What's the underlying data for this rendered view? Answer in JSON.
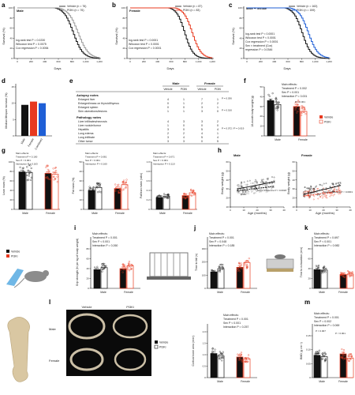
{
  "colors": {
    "vehicle": "#111111",
    "pi3k": "#e8391f",
    "male_female": "#1f5fd6",
    "combined_bar": "#1f5fd6",
    "grey": "#9a9a9a",
    "bone": "#d9c7a2"
  },
  "panels": [
    "a",
    "b",
    "c",
    "d",
    "e",
    "f",
    "g",
    "h",
    "i",
    "j",
    "k",
    "l",
    "m"
  ],
  "survival": {
    "ylabel": "Survival (%)",
    "xlabel": "Days",
    "yticks": [
      "0",
      "20",
      "40",
      "60",
      "80",
      "100"
    ],
    "xticks": [
      "0",
      "200",
      "400",
      "600",
      "800",
      "1,000",
      "1,200"
    ],
    "a": {
      "group": "Male",
      "legend": [
        "Vehicle (n = 76)",
        "PI3Ki (n = 76)"
      ],
      "stats": [
        "log-rank test P = 0.0230",
        "Wilcoxon test P = 0.0075",
        "Cox regression P = 0.0054"
      ]
    },
    "b": {
      "group": "Female",
      "legend": [
        "Vehicle (n = 87)",
        "PI3Ki (n = 83)"
      ],
      "stats": [
        "log-rank test P = 0.0001",
        "Wilcoxon test P = 0.0001",
        "Cox regression P = 0.0001"
      ]
    },
    "c": {
      "group": "Male + female",
      "legend": [
        "Vehicle (n = 163)",
        "PI3Ki (n = 159)"
      ],
      "stats": [
        "log-rank test P < 0.0001",
        "Wilcoxon test P < 0.0001",
        "Cox regression P < 0.0001",
        "Sex × treatment (Cox)",
        "regression P = 0.0346"
      ]
    }
  },
  "panel_d": {
    "ylabel": "Median lifespan increase (%)",
    "yticks": [
      "0",
      "5",
      "10",
      "15"
    ],
    "categories": [
      "Male",
      "Female",
      "Combined"
    ]
  },
  "panel_e": {
    "col_groups": [
      "Male",
      "Female"
    ],
    "col_heads": [
      "Vehicle",
      "PI3Ki",
      "Vehicle",
      "PI3Ki"
    ],
    "autopsy_title": "Autopsy notes",
    "autopsy_rows": [
      {
        "label": "Enlarged liver",
        "vals": [
          "4",
          "1",
          "7",
          "1"
        ],
        "p": "P = 0.036"
      },
      {
        "label": "Enlarged/mass on thyroid/thymus",
        "vals": [
          "0",
          "1",
          "2",
          "2"
        ],
        "p": ""
      },
      {
        "label": "Enlarged spleen",
        "vals": [
          "0",
          "0",
          "3",
          "1"
        ],
        "p": ""
      },
      {
        "label": "Skin ulcerations/lesions",
        "vals": [
          "1",
          "1",
          "3",
          "0"
        ],
        "p": "P = 0.016"
      }
    ],
    "pathology_title": "Pathology notes",
    "pathology_rows": [
      {
        "label": "Liver infiltrates/necrosis",
        "vals": [
          "4",
          "3",
          "3",
          "2"
        ],
        "p": ""
      },
      {
        "label": "Liver nodule/tumor",
        "vals": [
          "1",
          "0",
          "0",
          "0"
        ],
        "p": ""
      },
      {
        "label": "Hepatitis",
        "vals": [
          "3",
          "0",
          "5",
          "4"
        ],
        "p": "P = 0.072 / P = 0.019"
      },
      {
        "label": "Lung edema",
        "vals": [
          "2",
          "2",
          "4",
          "1"
        ],
        "p": ""
      },
      {
        "label": "Lung infiltrate",
        "vals": [
          "3",
          "4",
          "5",
          "4"
        ],
        "p": ""
      },
      {
        "label": "Other tumor",
        "vals": [
          "3",
          "3",
          "0",
          "5"
        ],
        "p": ""
      }
    ]
  },
  "panel_f": {
    "ylabel": "18-month body weight (g)",
    "yticks": [
      "0",
      "10",
      "20",
      "30",
      "40",
      "50"
    ],
    "groups": [
      "Male",
      "Female"
    ],
    "stats": [
      "Main effects:",
      "Treatment P = 0.002",
      "Sex P < 0.001",
      "Interaction P < 0.001"
    ],
    "pvals": [
      "P = 0.001"
    ],
    "legend": [
      "Vehicle",
      "PI3Ki"
    ]
  },
  "panel_g": {
    "groups": [
      "Male",
      "Female"
    ],
    "plots": [
      {
        "ylabel": "Lean mass (%)",
        "yticks": [
          "0",
          "20",
          "40",
          "60",
          "80",
          "100"
        ],
        "stats": [
          "Main effects:",
          "Treatment P = 0.100",
          "Sex P < 0.001",
          "Interaction P = 0.163"
        ]
      },
      {
        "ylabel": "Fat mass (%)",
        "yticks": [
          "0",
          "10",
          "20",
          "30",
          "40",
          "50"
        ],
        "stats": [
          "Main effects:",
          "Treatment P = 0.081",
          "Sex P < 0.001",
          "Interaction P = 0.160"
        ]
      },
      {
        "ylabel": "Fat/lean mass (ratio)",
        "yticks": [
          "0",
          "0.2",
          "0.4",
          "0.6",
          "0.8",
          "1.0"
        ],
        "stats": [
          "Main effects:",
          "Treatment P = 0.071",
          "Sex P < 0.001",
          "Interaction P = 0.110"
        ]
      }
    ]
  },
  "panel_h": {
    "ylabel": "Body weight (g)",
    "xlabel": "Age (months)",
    "xticks": [
      "0",
      "10",
      "20",
      "30",
      "40"
    ],
    "yticks": [
      "10",
      "20",
      "30",
      "40",
      "50",
      "60"
    ],
    "male": {
      "title": "Male",
      "legend": [
        "Vehicle",
        "PI3Ki"
      ],
      "stat": "Slope difference P = 0.0018"
    },
    "female": {
      "title": "Female",
      "legend": [
        "Vehicle",
        "PI3Ki"
      ],
      "stat": "Slope difference P < 0.0001"
    }
  },
  "panel_i": {
    "legend": [
      "Vehicle",
      "PI3Ki"
    ],
    "ylabel": "Grip strength (N per kg of body weight)",
    "yticks": [
      "0",
      "20",
      "40",
      "60",
      "80"
    ],
    "stats": [
      "Main effects:",
      "Treatment P = 0.001",
      "Sex P < 0.001",
      "Interaction P = 0.260"
    ],
    "groups": [
      "Male",
      "Female"
    ]
  },
  "panel_j": {
    "ylabel": "Time to fall (s)",
    "yticks": [
      "0",
      "100",
      "200",
      "300"
    ],
    "stats": [
      "Main effects:",
      "Treatment P = 0.001",
      "Sex P = 0.048",
      "Interaction P = 0.185"
    ],
    "groups": [
      "Male",
      "Female"
    ]
  },
  "panel_k": {
    "ylabel": "Time to exhaustion (min)",
    "yticks": [
      "0",
      "20",
      "40",
      "60",
      "80"
    ],
    "stats": [
      "Main effects:",
      "Treatment P = 0.697",
      "Sex P < 0.001",
      "Interaction P = 0.982"
    ],
    "groups": [
      "Male",
      "Female"
    ]
  },
  "panel_l": {
    "col_heads": [
      "Vehicle",
      "PI3Ki"
    ],
    "row_heads": [
      "Male",
      "Female"
    ],
    "legend": [
      "Vehicle",
      "PI3Ki"
    ],
    "ylabel": "Cortical bone area (mm²)",
    "yticks": [
      "0",
      "0.5",
      "1.0",
      "1.5",
      "2.0"
    ],
    "stats": [
      "Main effects:",
      "Treatment P = 0.001",
      "Sex P < 0.001",
      "Interaction P = 0.257"
    ],
    "groups": [
      "Male",
      "Female"
    ]
  },
  "panel_m": {
    "ylabel": "BMD (g cm⁻²)",
    "yticks": [
      "0",
      "0.05",
      "0.10",
      "0.15"
    ],
    "stats": [
      "Main effects:",
      "Treatment P = 0.001",
      "Sex P = 0.002",
      "Interaction P = 0.069"
    ],
    "pvals": [
      "P = 0.007",
      "P < 0.001"
    ],
    "groups": [
      "Male",
      "Female"
    ]
  }
}
